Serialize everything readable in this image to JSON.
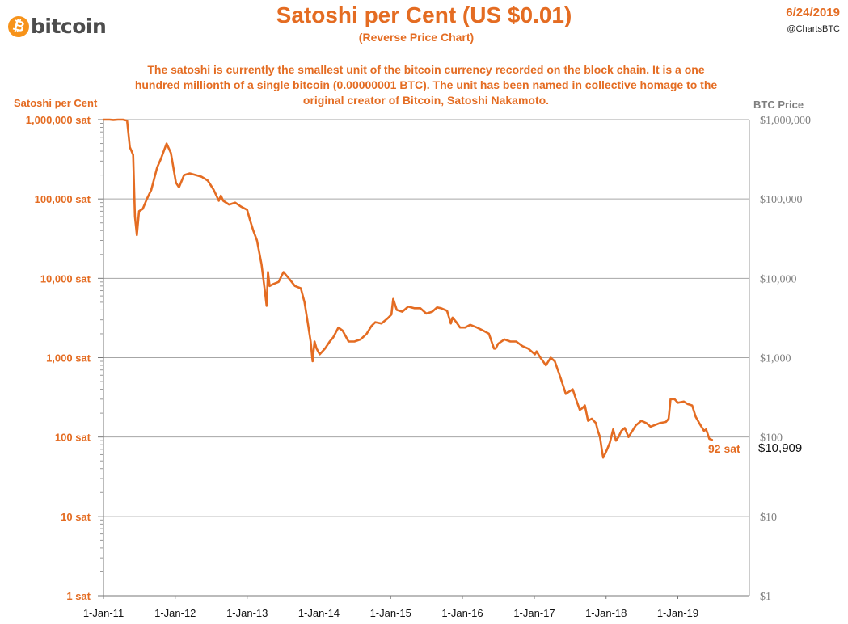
{
  "header": {
    "logo_text": "bitcoin",
    "logo_symbol": "₿",
    "date": "6/24/2019",
    "handle": "@ChartsBTC"
  },
  "colors": {
    "accent": "#e46c22",
    "brand": "#f7931a",
    "grid": "#a6a6a6",
    "axis_right": "#7f7f7f"
  },
  "chart_data": {
    "type": "line",
    "title": "Satoshi per Cent (US $0.01)",
    "subtitle": "(Reverse Price Chart)",
    "description": "The satoshi is currently the smallest unit of the bitcoin currency recorded on the block chain. It is a one hundred millionth of a single bitcoin (0.00000001 BTC).  The unit has been named in collective homage to the original creator of Bitcoin, Satoshi Nakamoto.",
    "ylabel": "Satoshi per Cent",
    "ylabel_right": "BTC Price",
    "y_scale": "log",
    "ylim": [
      1,
      1000000
    ],
    "y_ticks": [
      "1 sat",
      "10 sat",
      "100 sat",
      "1,000 sat",
      "10,000 sat",
      "100,000 sat",
      "1,000,000 sat"
    ],
    "y_ticks_right": [
      "$1,000,000",
      "$100,000",
      "$10,000",
      "$1,000",
      "$100",
      "$10",
      "$1"
    ],
    "xlim": [
      "2011-01-01",
      "2019-12-31"
    ],
    "x_ticks": [
      "1-Jan-11",
      "1-Jan-12",
      "1-Jan-13",
      "1-Jan-14",
      "1-Jan-15",
      "1-Jan-16",
      "1-Jan-17",
      "1-Jan-18",
      "1-Jan-19"
    ],
    "grid": true,
    "last_value_label": "92 sat",
    "last_price_label": "$10,909",
    "series": [
      {
        "x": [
          "2011-01-01",
          "2011-02-01",
          "2011-02-20",
          "2011-03-15",
          "2011-04-10",
          "2011-05-01",
          "2011-05-15",
          "2011-06-01",
          "2011-06-10",
          "2011-06-20",
          "2011-07-01",
          "2011-07-20",
          "2011-08-10",
          "2011-09-01",
          "2011-10-01",
          "2011-10-20",
          "2011-11-18",
          "2011-12-10",
          "2012-01-05",
          "2012-01-20",
          "2012-02-15",
          "2012-03-15",
          "2012-04-15",
          "2012-05-15",
          "2012-06-15",
          "2012-07-15",
          "2012-08-10",
          "2012-08-20",
          "2012-09-01",
          "2012-10-01",
          "2012-11-01",
          "2012-12-01",
          "2013-01-01",
          "2013-01-15",
          "2013-02-01",
          "2013-02-20",
          "2013-03-15",
          "2013-04-01",
          "2013-04-10",
          "2013-04-17",
          "2013-04-25",
          "2013-05-15",
          "2013-06-10",
          "2013-07-05",
          "2013-08-01",
          "2013-09-01",
          "2013-10-01",
          "2013-10-20",
          "2013-11-05",
          "2013-11-20",
          "2013-11-30",
          "2013-12-10",
          "2013-12-20",
          "2014-01-05",
          "2014-02-01",
          "2014-02-25",
          "2014-03-15",
          "2014-04-10",
          "2014-05-01",
          "2014-06-01",
          "2014-07-01",
          "2014-08-01",
          "2014-09-01",
          "2014-09-25",
          "2014-10-15",
          "2014-11-15",
          "2014-12-15",
          "2015-01-05",
          "2015-01-14",
          "2015-02-01",
          "2015-03-01",
          "2015-04-01",
          "2015-05-01",
          "2015-06-01",
          "2015-07-01",
          "2015-08-01",
          "2015-08-25",
          "2015-09-15",
          "2015-10-15",
          "2015-11-03",
          "2015-11-12",
          "2015-12-01",
          "2015-12-20",
          "2016-01-15",
          "2016-02-10",
          "2016-03-15",
          "2016-04-15",
          "2016-05-15",
          "2016-06-10",
          "2016-06-18",
          "2016-07-01",
          "2016-08-02",
          "2016-09-01",
          "2016-10-01",
          "2016-11-01",
          "2016-12-01",
          "2017-01-04",
          "2017-01-12",
          "2017-02-01",
          "2017-03-01",
          "2017-03-25",
          "2017-04-15",
          "2017-05-15",
          "2017-06-10",
          "2017-07-15",
          "2017-08-01",
          "2017-08-20",
          "2017-09-01",
          "2017-09-15",
          "2017-10-01",
          "2017-10-20",
          "2017-11-10",
          "2017-11-20",
          "2017-12-01",
          "2017-12-10",
          "2017-12-17",
          "2017-12-25",
          "2018-01-06",
          "2018-01-20",
          "2018-02-06",
          "2018-02-20",
          "2018-03-05",
          "2018-03-20",
          "2018-04-06",
          "2018-04-25",
          "2018-05-15",
          "2018-06-01",
          "2018-06-29",
          "2018-07-25",
          "2018-08-15",
          "2018-09-01",
          "2018-10-01",
          "2018-11-01",
          "2018-11-15",
          "2018-11-25",
          "2018-12-15",
          "2019-01-01",
          "2019-02-01",
          "2019-02-20",
          "2019-03-15",
          "2019-04-02",
          "2019-04-20",
          "2019-05-14",
          "2019-05-25",
          "2019-06-10",
          "2019-06-24"
        ],
        "values": [
          1000000,
          1000000,
          990000,
          1000000,
          1000000,
          970000,
          450000,
          360000,
          60000,
          35000,
          70000,
          75000,
          100000,
          130000,
          250000,
          320000,
          500000,
          380000,
          160000,
          140000,
          200000,
          210000,
          200000,
          190000,
          170000,
          130000,
          95000,
          110000,
          95000,
          85000,
          90000,
          80000,
          73000,
          55000,
          40000,
          30000,
          15000,
          7000,
          4500,
          12000,
          8000,
          8500,
          9000,
          12000,
          10000,
          8000,
          7500,
          5000,
          2800,
          1600,
          900,
          1600,
          1300,
          1100,
          1300,
          1600,
          1800,
          2400,
          2200,
          1600,
          1600,
          1700,
          2000,
          2500,
          2800,
          2700,
          3100,
          3500,
          5500,
          4000,
          3800,
          4400,
          4200,
          4200,
          3600,
          3800,
          4300,
          4200,
          3900,
          2700,
          3200,
          2800,
          2400,
          2400,
          2600,
          2400,
          2200,
          2000,
          1300,
          1300,
          1500,
          1700,
          1600,
          1600,
          1400,
          1300,
          1100,
          1200,
          1000,
          800,
          1000,
          900,
          550,
          350,
          400,
          300,
          220,
          230,
          250,
          160,
          170,
          150,
          120,
          100,
          70,
          55,
          60,
          70,
          85,
          125,
          90,
          100,
          120,
          130,
          100,
          120,
          140,
          160,
          150,
          135,
          140,
          150,
          155,
          170,
          300,
          300,
          270,
          280,
          260,
          250,
          180,
          150,
          120,
          125,
          95,
          92
        ]
      }
    ]
  }
}
